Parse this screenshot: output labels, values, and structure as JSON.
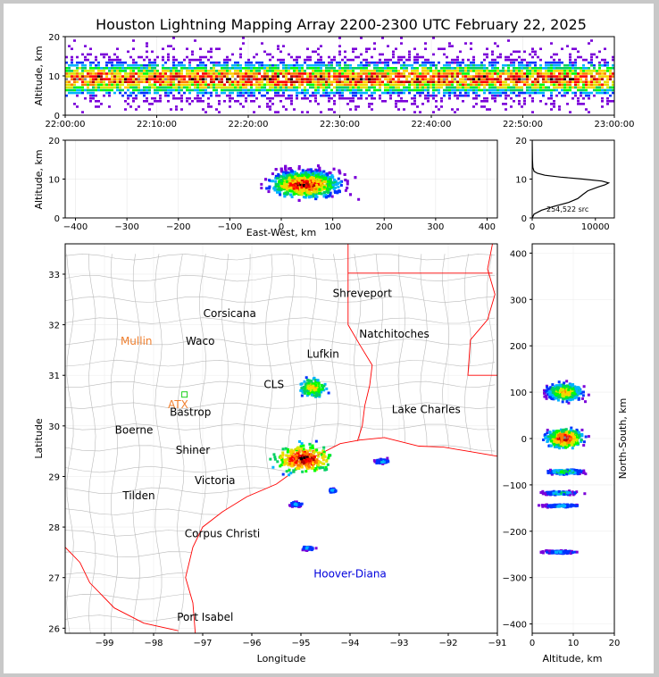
{
  "title": "Houston Lightning Mapping Array 2200-2300 UTC February 22, 2025",
  "colors": {
    "density_scale": [
      "#7a00d9",
      "#0033ff",
      "#00b4ff",
      "#00d060",
      "#00ff00",
      "#d8e800",
      "#ffd000",
      "#ff7a00",
      "#ff0000",
      "#b00000",
      "#000000",
      "#888888",
      "#ffffff"
    ],
    "state_border": "#ff0000",
    "county_border": "#bbbbbb",
    "city_orange": "#f08030",
    "city_blue": "#0000dd",
    "station_green": "#00cc00"
  },
  "chart_data": [
    {
      "id": "time_height",
      "type": "heatmap",
      "title": "",
      "xlabel": "",
      "ylabel": "Altitude, km",
      "x_ticks": [
        "22:00:00",
        "22:10:00",
        "22:20:00",
        "22:30:00",
        "22:40:00",
        "22:50:00",
        "23:00:00"
      ],
      "ylim": [
        0,
        20
      ],
      "y_ticks": [
        "0",
        "10",
        "20"
      ],
      "core_altitude_km": [
        6,
        12
      ],
      "grid": true
    },
    {
      "id": "east_west_altitude",
      "type": "heatmap",
      "xlabel": "East-West, km",
      "ylabel": "Altitude, km",
      "xlim": [
        -420,
        420
      ],
      "x_ticks": [
        "−400",
        "−300",
        "−200",
        "−100",
        "0",
        "100",
        "200",
        "300",
        "400"
      ],
      "ylim": [
        0,
        20
      ],
      "y_ticks": [
        "0",
        "10",
        "20"
      ],
      "clusters": [
        {
          "x": [
            -30,
            230
          ],
          "z": [
            0,
            20
          ],
          "core": [
            30,
            70
          ]
        }
      ],
      "grid": true
    },
    {
      "id": "altitude_histogram",
      "type": "line",
      "x_ticks": [
        "0",
        "10000"
      ],
      "xlim": [
        0,
        13000
      ],
      "ylim": [
        0,
        20
      ],
      "y_ticks": [
        "0",
        "10",
        "20"
      ],
      "annotation": "254,522 src",
      "altitude_km": [
        0,
        1,
        2,
        3,
        4,
        5,
        6,
        7,
        8,
        8.5,
        9,
        9.5,
        10,
        10.5,
        11,
        11.5,
        12,
        13,
        15,
        20
      ],
      "counts": [
        0,
        300,
        1500,
        3500,
        5800,
        7200,
        8000,
        8800,
        10500,
        11500,
        12100,
        11000,
        8000,
        4500,
        2000,
        800,
        300,
        100,
        40,
        0
      ]
    },
    {
      "id": "plan_view",
      "type": "scatter",
      "xlabel": "Longitude",
      "ylabel": "Latitude",
      "xlim": [
        -99.8,
        -91
      ],
      "x_ticks": [
        "−99",
        "−98",
        "−97",
        "−96",
        "−95",
        "−94",
        "−93",
        "−92",
        "−91"
      ],
      "ylim": [
        25.9,
        33.6
      ],
      "y_ticks": [
        "26",
        "27",
        "28",
        "29",
        "30",
        "31",
        "32",
        "33"
      ],
      "clusters": [
        {
          "lon": -94.95,
          "lat": 29.35,
          "rx": 0.95,
          "ry": 0.45,
          "intensity": 1.0
        },
        {
          "lon": -94.75,
          "lat": 30.75,
          "rx": 0.45,
          "ry": 0.32,
          "intensity": 0.65
        },
        {
          "lon": -93.35,
          "lat": 29.3,
          "rx": 0.25,
          "ry": 0.08,
          "intensity": 0.3
        },
        {
          "lon": -94.35,
          "lat": 28.72,
          "rx": 0.12,
          "ry": 0.07,
          "intensity": 0.3
        },
        {
          "lon": -95.1,
          "lat": 28.45,
          "rx": 0.2,
          "ry": 0.07,
          "intensity": 0.3
        },
        {
          "lon": -94.85,
          "lat": 27.58,
          "rx": 0.22,
          "ry": 0.06,
          "intensity": 0.3
        }
      ],
      "cities": [
        {
          "name": "Shreveport",
          "lon": -93.75,
          "lat": 32.55,
          "style": "black"
        },
        {
          "name": "Corsicana",
          "lon": -96.45,
          "lat": 32.15,
          "style": "black"
        },
        {
          "name": "Natchitoches",
          "lon": -93.1,
          "lat": 31.75,
          "style": "black"
        },
        {
          "name": "Mullin",
          "lon": -98.35,
          "lat": 31.6,
          "style": "orange"
        },
        {
          "name": "Waco",
          "lon": -97.05,
          "lat": 31.6,
          "style": "black"
        },
        {
          "name": "Lufkin",
          "lon": -94.55,
          "lat": 31.35,
          "style": "black"
        },
        {
          "name": "CLS",
          "lon": -95.55,
          "lat": 30.75,
          "style": "black"
        },
        {
          "name": "ATX",
          "lon": -97.5,
          "lat": 30.35,
          "style": "orange"
        },
        {
          "name": "Bastrop",
          "lon": -97.25,
          "lat": 30.2,
          "style": "black"
        },
        {
          "name": "Lake Charles",
          "lon": -92.45,
          "lat": 30.25,
          "style": "black"
        },
        {
          "name": "Boerne",
          "lon": -98.4,
          "lat": 29.85,
          "style": "black"
        },
        {
          "name": "Shiner",
          "lon": -97.2,
          "lat": 29.45,
          "style": "black"
        },
        {
          "name": "Victoria",
          "lon": -96.75,
          "lat": 28.85,
          "style": "black"
        },
        {
          "name": "Tilden",
          "lon": -98.3,
          "lat": 28.55,
          "style": "black"
        },
        {
          "name": "Corpus Christi",
          "lon": -96.6,
          "lat": 27.8,
          "style": "black"
        },
        {
          "name": "Hoover-Diana",
          "lon": -94.0,
          "lat": 27.0,
          "style": "blue"
        },
        {
          "name": "Port Isabel",
          "lon": -96.95,
          "lat": 26.15,
          "style": "black"
        }
      ]
    },
    {
      "id": "altitude_north_south",
      "type": "heatmap",
      "xlabel": "Altitude, km",
      "ylabel": "North-South, km",
      "xlim": [
        0,
        20
      ],
      "x_ticks": [
        "0",
        "10",
        "20"
      ],
      "ylim": [
        -420,
        420
      ],
      "y_ticks": [
        "−400",
        "−300",
        "−200",
        "−100",
        "0",
        "100",
        "200",
        "300",
        "400"
      ],
      "clusters": [
        {
          "y": 0,
          "half": 30,
          "core": 8,
          "intensity": 1.0
        },
        {
          "y": 100,
          "half": 28,
          "core": 8,
          "intensity": 0.7
        },
        {
          "y": -72,
          "half": 8,
          "core": 8,
          "intensity": 0.5
        },
        {
          "y": -118,
          "half": 6,
          "core": 7,
          "intensity": 0.4
        },
        {
          "y": -145,
          "half": 5,
          "core": 7,
          "intensity": 0.35
        },
        {
          "y": -245,
          "half": 5,
          "core": 7,
          "intensity": 0.3
        }
      ],
      "grid": true
    }
  ]
}
